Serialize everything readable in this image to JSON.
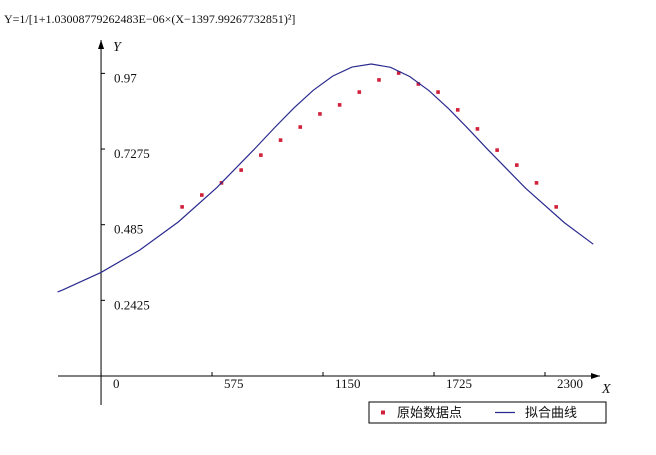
{
  "chart_data": {
    "type": "scatter_fit",
    "title": "Y=1/[1+1.03008779262483E−06×(X−1397.99267732851)²]",
    "xlabel": "X",
    "ylabel": "Y",
    "xlim": [
      -223,
      2585
    ],
    "ylim": [
      -0.093,
      1.077
    ],
    "xticks": [
      0,
      575,
      1150,
      1725,
      2300
    ],
    "yticks": [
      0.2425,
      0.485,
      0.7275,
      0.97
    ],
    "legend": "bottom-right",
    "series": [
      {
        "name": "原始数据点",
        "kind": "points",
        "color": "#d0203a",
        "x": [
          420,
          522,
          624,
          726,
          828,
          930,
          1032,
          1134,
          1236,
          1338,
          1440,
          1542,
          1644,
          1746,
          1848,
          1950,
          2052,
          2154,
          2256,
          2358
        ],
        "values": [
          0.542,
          0.58,
          0.619,
          0.66,
          0.708,
          0.756,
          0.798,
          0.84,
          0.869,
          0.91,
          0.949,
          0.971,
          0.936,
          0.91,
          0.853,
          0.792,
          0.724,
          0.676,
          0.619,
          0.542
        ]
      },
      {
        "name": "拟合曲线",
        "kind": "line",
        "color": "#2b2b8f",
        "x": [
          -225,
          -200,
          0,
          200,
          400,
          600,
          800,
          900,
          1000,
          1100,
          1200,
          1300,
          1400,
          1500,
          1600,
          1700,
          1800,
          1900,
          2000,
          2200,
          2400,
          2550
        ],
        "values": [
          0.2693,
          0.2754,
          0.3319,
          0.4035,
          0.4936,
          0.6039,
          0.7308,
          0.7966,
          0.8597,
          0.9162,
          0.9612,
          0.9902,
          1.0,
          0.9894,
          0.9597,
          0.9141,
          0.8573,
          0.7939,
          0.7282,
          0.6015,
          0.4916,
          0.4225
        ]
      }
    ]
  }
}
